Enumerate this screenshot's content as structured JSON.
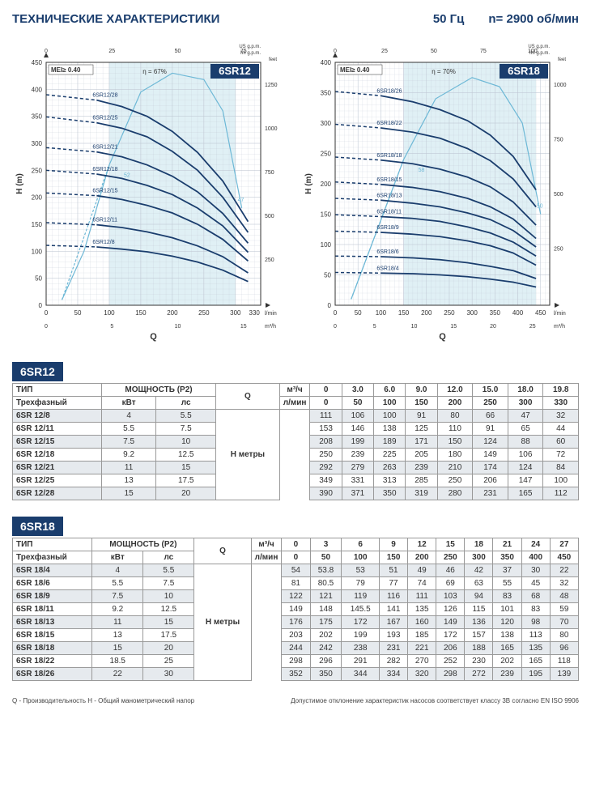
{
  "header": {
    "title": "ТЕХНИЧЕСКИЕ ХАРАКТЕРИСТИКИ",
    "freq": "50 Гц",
    "rpm": "n= 2900 об/мин"
  },
  "chart_colors": {
    "line": "#1a3d6d",
    "grid": "#bfc8d4",
    "band": "#c7e4ec",
    "eff": "#6db8d6",
    "text": "#1a3d6d",
    "badge_bg": "#1a3d6d",
    "badge_fg": "#ffffff"
  },
  "chart1": {
    "badge": "6SR12",
    "mei": "MEI≥ 0.40",
    "eff_label": "η = 67%",
    "eff_start": "52",
    "eff_end": "47",
    "xlabel": "Q",
    "ylabel": "H (m)",
    "x_top_us": "US g.p.m.",
    "x_top_im": "Im g.p.m.",
    "y_right": "feet",
    "x_bot_unit": "l/min",
    "x_bot_unit2": "m³/h",
    "x_max": 340,
    "y_max": 450,
    "x_ticks": [
      0,
      50,
      100,
      150,
      200,
      250,
      300
    ],
    "x_tick_extra": 330,
    "y_ticks": [
      0,
      50,
      100,
      150,
      200,
      250,
      300,
      350,
      400,
      450
    ],
    "x_top_ticks": [
      0,
      25,
      50,
      75
    ],
    "y_right_ticks": [
      250,
      500,
      750,
      1000,
      1250
    ],
    "m3h_ticks": [
      0,
      5,
      10,
      15
    ],
    "band_x1": 100,
    "band_x2": 300,
    "curves": [
      {
        "label": "6SR12/28",
        "y0": 390,
        "pts": [
          [
            80,
            380
          ],
          [
            120,
            368
          ],
          [
            160,
            350
          ],
          [
            200,
            322
          ],
          [
            240,
            283
          ],
          [
            280,
            230
          ],
          [
            320,
            155
          ]
        ]
      },
      {
        "label": "6SR12/25",
        "y0": 349,
        "pts": [
          [
            80,
            338
          ],
          [
            120,
            328
          ],
          [
            160,
            312
          ],
          [
            200,
            285
          ],
          [
            240,
            250
          ],
          [
            280,
            200
          ],
          [
            320,
            135
          ]
        ]
      },
      {
        "label": "6SR12/21",
        "y0": 292,
        "pts": [
          [
            80,
            284
          ],
          [
            120,
            275
          ],
          [
            160,
            260
          ],
          [
            200,
            239
          ],
          [
            240,
            210
          ],
          [
            280,
            170
          ],
          [
            320,
            115
          ]
        ]
      },
      {
        "label": "6SR12/18",
        "y0": 250,
        "pts": [
          [
            80,
            243
          ],
          [
            120,
            235
          ],
          [
            160,
            222
          ],
          [
            200,
            205
          ],
          [
            240,
            180
          ],
          [
            280,
            147
          ],
          [
            320,
            98
          ]
        ]
      },
      {
        "label": "6SR12/15",
        "y0": 208,
        "pts": [
          [
            80,
            203
          ],
          [
            120,
            196
          ],
          [
            160,
            185
          ],
          [
            200,
            171
          ],
          [
            240,
            150
          ],
          [
            280,
            122
          ],
          [
            320,
            82
          ]
        ]
      },
      {
        "label": "6SR12/11",
        "y0": 153,
        "pts": [
          [
            80,
            149
          ],
          [
            120,
            144
          ],
          [
            160,
            136
          ],
          [
            200,
            125
          ],
          [
            240,
            110
          ],
          [
            280,
            90
          ],
          [
            320,
            60
          ]
        ]
      },
      {
        "label": "6SR12/8",
        "y0": 111,
        "pts": [
          [
            80,
            108
          ],
          [
            120,
            104
          ],
          [
            160,
            99
          ],
          [
            200,
            91
          ],
          [
            240,
            80
          ],
          [
            280,
            65
          ],
          [
            320,
            44
          ]
        ]
      }
    ],
    "eff_curve": [
      [
        25,
        10
      ],
      [
        60,
        100
      ],
      [
        100,
        260
      ],
      [
        150,
        395
      ],
      [
        200,
        430
      ],
      [
        250,
        418
      ],
      [
        280,
        360
      ],
      [
        310,
        180
      ]
    ]
  },
  "chart2": {
    "badge": "6SR18",
    "mei": "MEI≥ 0.40",
    "eff_label": "η = 70%",
    "eff_start": "58",
    "eff_end": "50",
    "xlabel": "Q",
    "ylabel": "H (m)",
    "x_top_us": "US g.p.m.",
    "x_top_im": "Im g.p.m.",
    "y_right": "feet",
    "x_bot_unit": "l/min",
    "x_bot_unit2": "m³/h",
    "x_max": 470,
    "y_max": 400,
    "x_ticks": [
      0,
      50,
      100,
      150,
      200,
      250,
      300,
      350,
      400,
      450
    ],
    "y_ticks": [
      0,
      50,
      100,
      150,
      200,
      250,
      300,
      350,
      400
    ],
    "x_top_ticks": [
      0,
      25,
      50,
      75,
      100
    ],
    "y_right_ticks": [
      250,
      500,
      750,
      1000
    ],
    "m3h_ticks": [
      0,
      5,
      10,
      15,
      20,
      25
    ],
    "band_x1": 150,
    "band_x2": 440,
    "curves": [
      {
        "label": "6SR18/26",
        "y0": 352,
        "pts": [
          [
            100,
            345
          ],
          [
            170,
            335
          ],
          [
            230,
            322
          ],
          [
            290,
            304
          ],
          [
            340,
            280
          ],
          [
            390,
            245
          ],
          [
            440,
            190
          ]
        ]
      },
      {
        "label": "6SR18/22",
        "y0": 298,
        "pts": [
          [
            100,
            292
          ],
          [
            170,
            285
          ],
          [
            230,
            275
          ],
          [
            290,
            258
          ],
          [
            340,
            238
          ],
          [
            390,
            208
          ],
          [
            440,
            162
          ]
        ]
      },
      {
        "label": "6SR18/18",
        "y0": 244,
        "pts": [
          [
            100,
            239
          ],
          [
            170,
            233
          ],
          [
            230,
            224
          ],
          [
            290,
            211
          ],
          [
            340,
            195
          ],
          [
            390,
            170
          ],
          [
            440,
            132
          ]
        ]
      },
      {
        "label": "6SR18/15",
        "y0": 203,
        "pts": [
          [
            100,
            199
          ],
          [
            170,
            194
          ],
          [
            230,
            187
          ],
          [
            290,
            176
          ],
          [
            340,
            162
          ],
          [
            390,
            142
          ],
          [
            440,
            110
          ]
        ]
      },
      {
        "label": "6SR18/13",
        "y0": 176,
        "pts": [
          [
            100,
            173
          ],
          [
            170,
            168
          ],
          [
            230,
            162
          ],
          [
            290,
            152
          ],
          [
            340,
            141
          ],
          [
            390,
            123
          ],
          [
            440,
            96
          ]
        ]
      },
      {
        "label": "6SR18/11",
        "y0": 149,
        "pts": [
          [
            100,
            146
          ],
          [
            170,
            143
          ],
          [
            230,
            138
          ],
          [
            290,
            129
          ],
          [
            340,
            119
          ],
          [
            390,
            104
          ],
          [
            440,
            81
          ]
        ]
      },
      {
        "label": "6SR18/9",
        "y0": 122,
        "pts": [
          [
            100,
            120
          ],
          [
            170,
            117
          ],
          [
            230,
            113
          ],
          [
            290,
            106
          ],
          [
            340,
            98
          ],
          [
            390,
            86
          ],
          [
            440,
            66
          ]
        ]
      },
      {
        "label": "6SR18/6",
        "y0": 81,
        "pts": [
          [
            100,
            80
          ],
          [
            170,
            78
          ],
          [
            230,
            75
          ],
          [
            290,
            70
          ],
          [
            340,
            64
          ],
          [
            390,
            57
          ],
          [
            440,
            44
          ]
        ]
      },
      {
        "label": "6SR18/4",
        "y0": 54,
        "pts": [
          [
            100,
            53
          ],
          [
            170,
            52
          ],
          [
            230,
            50
          ],
          [
            290,
            47
          ],
          [
            340,
            43
          ],
          [
            390,
            38
          ],
          [
            440,
            30
          ]
        ]
      }
    ],
    "eff_curve": [
      [
        35,
        10
      ],
      [
        80,
        100
      ],
      [
        150,
        240
      ],
      [
        220,
        340
      ],
      [
        300,
        375
      ],
      [
        360,
        360
      ],
      [
        410,
        300
      ],
      [
        450,
        150
      ]
    ]
  },
  "tbl1": {
    "title": "6SR12",
    "head_type": "ТИП",
    "head_power": "МОЩНОСТЬ (P2)",
    "head_subtype": "Трехфазный",
    "head_kw": "кВт",
    "head_hp": "лс",
    "head_q": "Q",
    "head_m3h": "м³/ч",
    "head_lmin": "л/мин",
    "head_hm": "H метры",
    "q_m3h": [
      "0",
      "3.0",
      "6.0",
      "9.0",
      "12.0",
      "15.0",
      "18.0",
      "19.8"
    ],
    "q_lmin": [
      "0",
      "50",
      "100",
      "150",
      "200",
      "250",
      "300",
      "330"
    ],
    "rows": [
      {
        "m": "6SR 12/8",
        "kw": "4",
        "hp": "5.5",
        "v": [
          111,
          106,
          100,
          91,
          80,
          66,
          47,
          32
        ]
      },
      {
        "m": "6SR 12/11",
        "kw": "5.5",
        "hp": "7.5",
        "v": [
          153,
          146,
          138,
          125,
          110,
          91,
          65,
          44
        ]
      },
      {
        "m": "6SR 12/15",
        "kw": "7.5",
        "hp": "10",
        "v": [
          208,
          199,
          189,
          171,
          150,
          124,
          88,
          60
        ]
      },
      {
        "m": "6SR 12/18",
        "kw": "9.2",
        "hp": "12.5",
        "v": [
          250,
          239,
          225,
          205,
          180,
          149,
          106,
          72
        ]
      },
      {
        "m": "6SR 12/21",
        "kw": "11",
        "hp": "15",
        "v": [
          292,
          279,
          263,
          239,
          210,
          174,
          124,
          84
        ]
      },
      {
        "m": "6SR 12/25",
        "kw": "13",
        "hp": "17.5",
        "v": [
          349,
          331,
          313,
          285,
          250,
          206,
          147,
          100
        ]
      },
      {
        "m": "6SR 12/28",
        "kw": "15",
        "hp": "20",
        "v": [
          390,
          371,
          350,
          319,
          280,
          231,
          165,
          112
        ]
      }
    ]
  },
  "tbl2": {
    "title": "6SR18",
    "head_type": "ТИП",
    "head_power": "МОЩНОСТЬ (P2)",
    "head_subtype": "Трехфазный",
    "head_kw": "кВт",
    "head_hp": "лс",
    "head_q": "Q",
    "head_m3h": "м³/ч",
    "head_lmin": "л/мин",
    "head_hm": "H метры",
    "q_m3h": [
      "0",
      "3",
      "6",
      "9",
      "12",
      "15",
      "18",
      "21",
      "24",
      "27"
    ],
    "q_lmin": [
      "0",
      "50",
      "100",
      "150",
      "200",
      "250",
      "300",
      "350",
      "400",
      "450"
    ],
    "rows": [
      {
        "m": "6SR 18/4",
        "kw": "4",
        "hp": "5.5",
        "v": [
          54,
          53.8,
          53,
          51,
          49,
          46,
          42,
          37,
          30,
          22
        ]
      },
      {
        "m": "6SR 18/6",
        "kw": "5.5",
        "hp": "7.5",
        "v": [
          81,
          80.5,
          79,
          77,
          74,
          69,
          63,
          55,
          45,
          32
        ]
      },
      {
        "m": "6SR 18/9",
        "kw": "7.5",
        "hp": "10",
        "v": [
          122,
          121,
          119,
          116,
          111,
          103,
          94,
          83,
          68,
          48
        ]
      },
      {
        "m": "6SR 18/11",
        "kw": "9.2",
        "hp": "12.5",
        "v": [
          149,
          148,
          145.5,
          141,
          135,
          126,
          115,
          101,
          83,
          59
        ]
      },
      {
        "m": "6SR 18/13",
        "kw": "11",
        "hp": "15",
        "v": [
          176,
          175,
          172,
          167,
          160,
          149,
          136,
          120,
          98,
          70
        ]
      },
      {
        "m": "6SR 18/15",
        "kw": "13",
        "hp": "17.5",
        "v": [
          203,
          202,
          199,
          193,
          185,
          172,
          157,
          138,
          113,
          80
        ]
      },
      {
        "m": "6SR 18/18",
        "kw": "15",
        "hp": "20",
        "v": [
          244,
          242,
          238,
          231,
          221,
          206,
          188,
          165,
          135,
          96
        ]
      },
      {
        "m": "6SR 18/22",
        "kw": "18.5",
        "hp": "25",
        "v": [
          298,
          296,
          291,
          282,
          270,
          252,
          230,
          202,
          165,
          118
        ]
      },
      {
        "m": "6SR 18/26",
        "kw": "22",
        "hp": "30",
        "v": [
          352,
          350,
          344,
          334,
          320,
          298,
          272,
          239,
          195,
          139
        ]
      }
    ]
  },
  "foot": {
    "left": "Q - Производительность   H - Общий манометрический напор",
    "right": "Допустимое отклонение характеристик насосов соответствует классу 3В согласно EN ISO 9906"
  }
}
